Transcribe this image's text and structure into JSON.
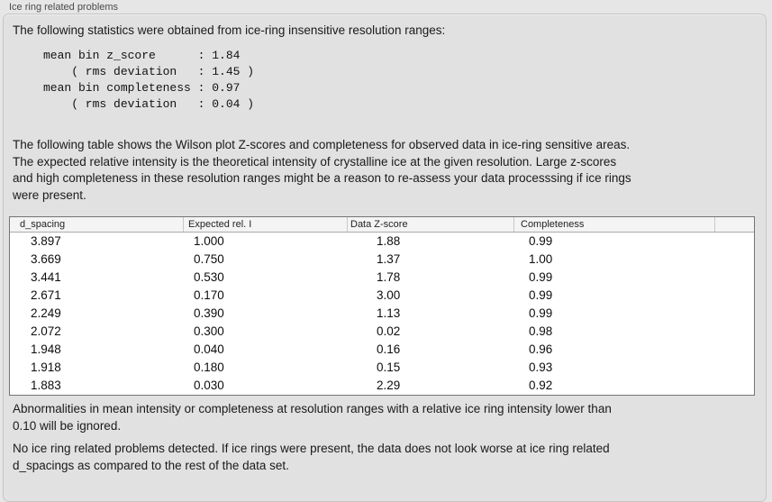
{
  "panel": {
    "title": "Ice ring related problems"
  },
  "intro": {
    "text": "The following statistics were obtained from ice-ring insensitive resolution ranges:",
    "stats_block": "mean bin z_score      : 1.84\n    ( rms deviation   : 1.45 )\nmean bin completeness : 0.97\n    ( rms deviation   : 0.04 )",
    "stats": {
      "mean_bin_z_score": "1.84",
      "z_score_rms_deviation": "1.45",
      "mean_bin_completeness": "0.97",
      "completeness_rms_deviation": "0.04"
    }
  },
  "description": "The following table shows the Wilson plot Z-scores and completeness for observed data in ice-ring sensitive areas.\nThe expected relative intensity is the theoretical intensity of crystalline ice at the given resolution. Large z-scores\nand high completeness in these resolution ranges might be a reason to re-assess your data processsing if ice rings\nwere present.",
  "table": {
    "columns": [
      "d_spacing",
      "Expected rel. I",
      "Data Z-score",
      "Completeness"
    ],
    "rows": [
      [
        "3.897",
        "1.000",
        "1.88",
        "0.99"
      ],
      [
        "3.669",
        "0.750",
        "1.37",
        "1.00"
      ],
      [
        "3.441",
        "0.530",
        "1.78",
        "0.99"
      ],
      [
        "2.671",
        "0.170",
        "3.00",
        "0.99"
      ],
      [
        "2.249",
        "0.390",
        "1.13",
        "0.99"
      ],
      [
        "2.072",
        "0.300",
        "0.02",
        "0.98"
      ],
      [
        "1.948",
        "0.040",
        "0.16",
        "0.96"
      ],
      [
        "1.918",
        "0.180",
        "0.15",
        "0.93"
      ],
      [
        "1.883",
        "0.030",
        "2.29",
        "0.92"
      ]
    ]
  },
  "footnotes": {
    "ignore_note": "Abnormalities in mean intensity or completeness at resolution ranges with a relative ice ring intensity lower than\n0.10 will be ignored.",
    "conclusion": "No ice ring related problems detected. If ice rings were present, the data does not look worse at ice ring related\nd_spacings as compared to the rest of the data set."
  },
  "colors": {
    "page_background": "#e6e6e6",
    "groupbox_background": "#e1e1e1",
    "table_background": "#ffffff",
    "header_background": "#f4f4f4",
    "text": "#1a1a1a"
  }
}
